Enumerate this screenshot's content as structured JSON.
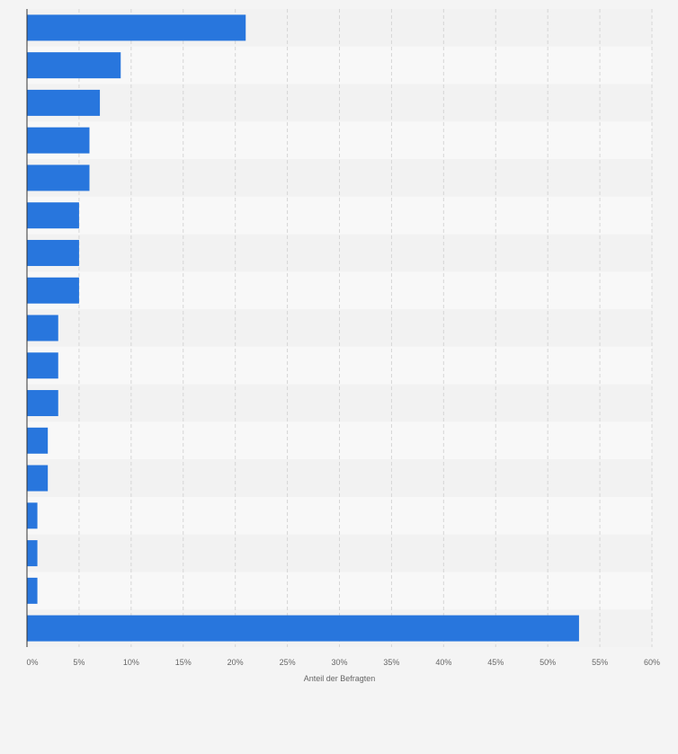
{
  "chart_data": {
    "type": "bar",
    "orientation": "horizontal",
    "values": [
      21,
      9,
      7,
      6,
      6,
      5,
      5,
      5,
      3,
      3,
      3,
      2,
      2,
      1,
      1,
      1,
      53
    ],
    "xlabel": "Anteil der Befragten",
    "ylabel": "",
    "xlim": [
      0,
      60
    ],
    "x_ticks": [
      "0%",
      "5%",
      "10%",
      "15%",
      "20%",
      "25%",
      "30%",
      "35%",
      "40%",
      "45%",
      "50%",
      "55%",
      "60%"
    ],
    "grid": true,
    "legend": "none"
  },
  "colors": {
    "bar": "#2876dd",
    "background": "#f4f4f4",
    "plot_band_a": "#f2f2f2",
    "plot_band_b": "#f8f8f8",
    "grid": "#d6d6d6",
    "axis": "#333333"
  }
}
